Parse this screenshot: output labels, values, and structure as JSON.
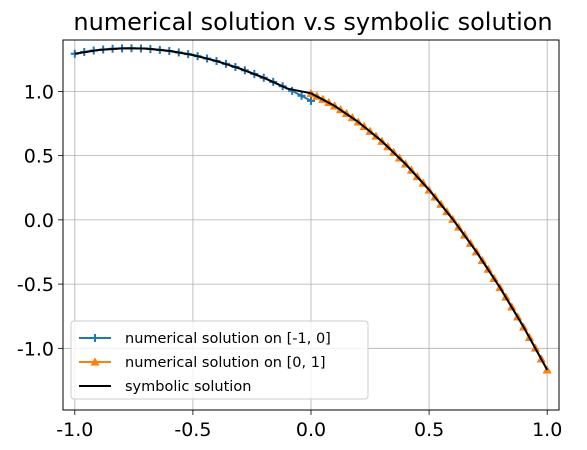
{
  "chart_data": {
    "type": "line",
    "title": "numerical solution v.s symbolic solution",
    "xlabel": "",
    "ylabel": "",
    "xlim": [
      -1.05,
      1.05
    ],
    "ylim": [
      -1.48,
      1.4
    ],
    "xticks": [
      -1.0,
      -0.5,
      0.0,
      0.5,
      1.0
    ],
    "xtick_labels": [
      "-1.0",
      "-0.5",
      "0.0",
      "0.5",
      "1.0"
    ],
    "yticks": [
      -1.0,
      -0.5,
      0.0,
      0.5,
      1.0
    ],
    "ytick_labels": [
      "-1.0",
      "-0.5",
      "0.0",
      "0.5",
      "1.0"
    ],
    "grid": true,
    "legend_position": "lower-left",
    "series": [
      {
        "name": "numerical solution on [-1, 0]",
        "color": "#1f77b4",
        "marker": "plus",
        "x": [
          -1.0,
          -0.96,
          -0.92,
          -0.88,
          -0.84,
          -0.8,
          -0.76,
          -0.72,
          -0.68,
          -0.64,
          -0.6,
          -0.56,
          -0.52,
          -0.48,
          -0.44,
          -0.4,
          -0.36,
          -0.32,
          -0.28,
          -0.24,
          -0.2,
          -0.16,
          -0.12,
          -0.08,
          -0.04,
          0.0
        ],
        "y": [
          1.293,
          1.307,
          1.318,
          1.326,
          1.332,
          1.335,
          1.336,
          1.334,
          1.33,
          1.323,
          1.314,
          1.303,
          1.29,
          1.274,
          1.256,
          1.236,
          1.214,
          1.19,
          1.164,
          1.136,
          1.106,
          1.074,
          1.04,
          1.004,
          0.966,
          0.926
        ]
      },
      {
        "name": "numerical solution on [0, 1]",
        "color": "#ff7f0e",
        "marker": "triangle",
        "x": [
          0.0,
          0.025,
          0.05,
          0.075,
          0.1,
          0.125,
          0.15,
          0.175,
          0.2,
          0.225,
          0.25,
          0.275,
          0.3,
          0.325,
          0.35,
          0.375,
          0.4,
          0.425,
          0.45,
          0.475,
          0.5,
          0.525,
          0.55,
          0.575,
          0.6,
          0.625,
          0.65,
          0.675,
          0.7,
          0.725,
          0.75,
          0.775,
          0.8,
          0.825,
          0.85,
          0.875,
          0.9,
          0.925,
          0.95,
          0.975,
          1.0
        ],
        "y": [
          0.985,
          0.963,
          0.939,
          0.914,
          0.887,
          0.858,
          0.828,
          0.796,
          0.762,
          0.727,
          0.69,
          0.652,
          0.612,
          0.57,
          0.527,
          0.482,
          0.435,
          0.387,
          0.337,
          0.286,
          0.233,
          0.178,
          0.122,
          0.064,
          0.005,
          -0.056,
          -0.118,
          -0.182,
          -0.248,
          -0.315,
          -0.384,
          -0.455,
          -0.527,
          -0.601,
          -0.677,
          -0.755,
          -0.834,
          -0.915,
          -0.998,
          -1.082,
          -1.168
        ]
      },
      {
        "name": "symbolic solution",
        "color": "#000000",
        "marker": "none",
        "x": [
          -1.0,
          -0.9,
          -0.8,
          -0.7,
          -0.6,
          -0.5,
          -0.4,
          -0.3,
          -0.2,
          -0.1,
          0.0,
          0.1,
          0.2,
          0.3,
          0.4,
          0.5,
          0.6,
          0.7,
          0.8,
          0.9,
          1.0
        ],
        "y": [
          1.293,
          1.322,
          1.335,
          1.334,
          1.315,
          1.283,
          1.236,
          1.177,
          1.106,
          1.022,
          0.985,
          0.887,
          0.762,
          0.612,
          0.435,
          0.233,
          0.005,
          -0.248,
          -0.527,
          -0.834,
          -1.168
        ]
      }
    ]
  }
}
